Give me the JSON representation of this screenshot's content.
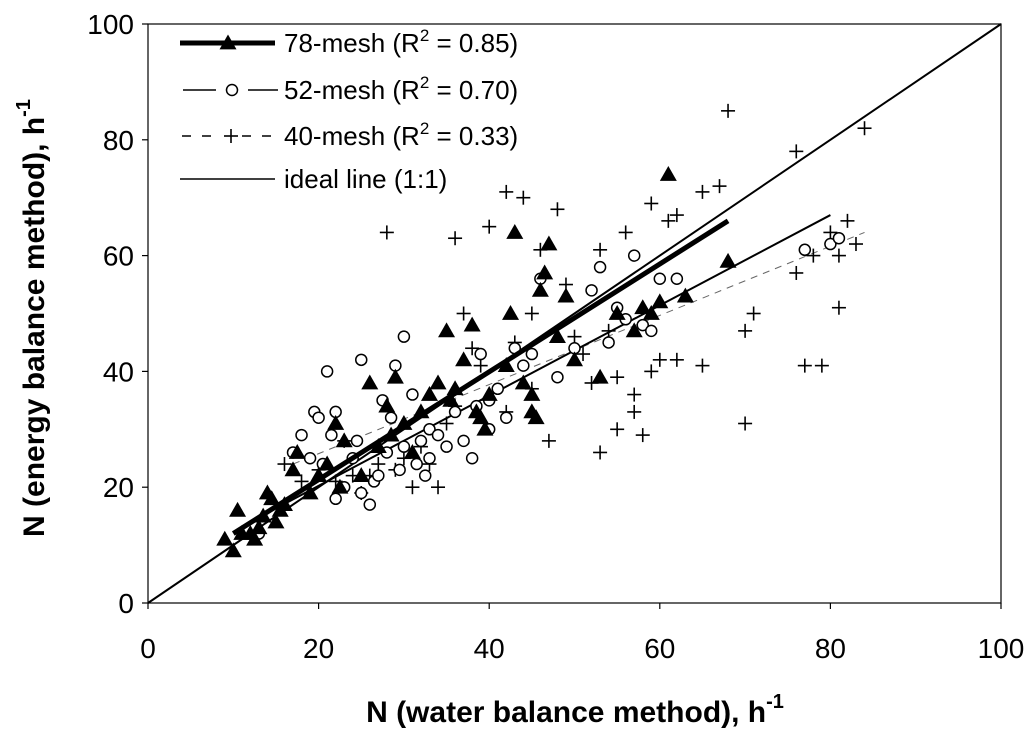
{
  "chart_data": {
    "type": "scatter",
    "xlabel": "N (water balance method), h",
    "xlabel_sup": "-1",
    "ylabel": "N (energy balance method), h",
    "ylabel_sup": "-1",
    "xlim": [
      0,
      100
    ],
    "ylim": [
      0,
      100
    ],
    "xticks": [
      "0",
      "20",
      "40",
      "60",
      "80",
      "100"
    ],
    "yticks": [
      "0",
      "20",
      "40",
      "60",
      "80",
      "100"
    ],
    "grid": false,
    "legend_position": "top-left",
    "series": [
      {
        "name": "78-mesh",
        "r2_label": "(R",
        "r2_sup": "2",
        "r2_value": " = 0.85)",
        "marker": "filled-triangle",
        "color": "#000000",
        "fit": {
          "x": [
            10,
            68
          ],
          "y": [
            12,
            66
          ]
        },
        "points": [
          [
            9,
            11
          ],
          [
            10,
            9
          ],
          [
            10.5,
            16
          ],
          [
            11,
            12
          ],
          [
            12,
            12
          ],
          [
            12.5,
            11
          ],
          [
            13,
            13
          ],
          [
            13.5,
            15
          ],
          [
            14,
            19
          ],
          [
            14.5,
            18
          ],
          [
            15,
            14
          ],
          [
            15.5,
            16
          ],
          [
            16,
            17
          ],
          [
            17,
            23
          ],
          [
            17.5,
            26
          ],
          [
            19,
            19
          ],
          [
            20,
            22
          ],
          [
            21,
            24
          ],
          [
            22,
            31
          ],
          [
            22.5,
            20
          ],
          [
            23,
            28
          ],
          [
            25,
            22
          ],
          [
            26,
            38
          ],
          [
            27,
            27
          ],
          [
            28,
            34
          ],
          [
            28.5,
            29
          ],
          [
            29,
            39
          ],
          [
            30,
            31
          ],
          [
            31,
            26
          ],
          [
            32,
            33
          ],
          [
            33,
            36
          ],
          [
            34,
            38
          ],
          [
            35,
            47
          ],
          [
            35.5,
            35
          ],
          [
            36,
            37
          ],
          [
            37,
            42
          ],
          [
            38,
            48
          ],
          [
            38.5,
            33
          ],
          [
            39,
            32
          ],
          [
            39.5,
            30
          ],
          [
            40,
            36
          ],
          [
            42,
            41
          ],
          [
            42.5,
            50
          ],
          [
            43,
            64
          ],
          [
            44,
            38
          ],
          [
            45,
            36
          ],
          [
            45.5,
            32
          ],
          [
            45,
            33
          ],
          [
            46,
            54
          ],
          [
            46.5,
            57
          ],
          [
            47,
            62
          ],
          [
            48,
            46
          ],
          [
            49,
            53
          ],
          [
            50,
            42
          ],
          [
            53,
            39
          ],
          [
            55,
            50
          ],
          [
            57,
            47
          ],
          [
            58,
            51
          ],
          [
            59,
            50
          ],
          [
            60,
            52
          ],
          [
            61,
            74
          ],
          [
            63,
            53
          ],
          [
            68,
            59
          ]
        ]
      },
      {
        "name": "52-mesh",
        "r2_label": "(R",
        "r2_sup": "2",
        "r2_value": " = 0.70)",
        "marker": "open-circle",
        "color": "#000000",
        "fit": {
          "x": [
            12,
            80
          ],
          "y": [
            14,
            67
          ]
        },
        "points": [
          [
            13,
            12
          ],
          [
            17,
            26
          ],
          [
            18,
            29
          ],
          [
            19,
            25
          ],
          [
            19.5,
            33
          ],
          [
            20,
            32
          ],
          [
            20.5,
            24
          ],
          [
            21,
            40
          ],
          [
            21.5,
            29
          ],
          [
            22,
            33
          ],
          [
            22,
            18
          ],
          [
            23,
            20
          ],
          [
            24,
            25
          ],
          [
            24.5,
            28
          ],
          [
            25,
            42
          ],
          [
            25,
            19
          ],
          [
            26,
            17
          ],
          [
            26.5,
            21
          ],
          [
            27,
            22
          ],
          [
            27.5,
            35
          ],
          [
            28,
            26
          ],
          [
            28.5,
            32
          ],
          [
            29,
            41
          ],
          [
            29.5,
            23
          ],
          [
            30,
            46
          ],
          [
            30,
            27
          ],
          [
            31,
            36
          ],
          [
            31.5,
            24
          ],
          [
            32,
            28
          ],
          [
            32.5,
            22
          ],
          [
            33,
            30
          ],
          [
            33,
            25
          ],
          [
            34,
            29
          ],
          [
            35,
            27
          ],
          [
            36,
            33
          ],
          [
            37,
            28
          ],
          [
            38,
            25
          ],
          [
            38.5,
            34
          ],
          [
            39,
            43
          ],
          [
            40,
            35
          ],
          [
            40,
            30
          ],
          [
            41,
            37
          ],
          [
            42,
            32
          ],
          [
            43,
            44
          ],
          [
            44,
            41
          ],
          [
            45,
            43
          ],
          [
            46,
            56
          ],
          [
            48,
            39
          ],
          [
            50,
            44
          ],
          [
            52,
            54
          ],
          [
            53,
            58
          ],
          [
            54,
            45
          ],
          [
            55,
            51
          ],
          [
            56,
            49
          ],
          [
            57,
            60
          ],
          [
            58,
            48
          ],
          [
            59,
            47
          ],
          [
            60,
            56
          ],
          [
            62,
            56
          ],
          [
            77,
            61
          ],
          [
            80,
            62
          ],
          [
            81,
            63
          ]
        ]
      },
      {
        "name": "40-mesh",
        "r2_label": "(R",
        "r2_sup": "2",
        "r2_value": " = 0.33)",
        "marker": "plus",
        "color": "#000000",
        "fit": {
          "x": [
            17,
            84
          ],
          "y": [
            24,
            64
          ]
        },
        "points": [
          [
            16,
            24
          ],
          [
            18,
            21
          ],
          [
            20,
            23
          ],
          [
            22,
            21
          ],
          [
            23,
            28
          ],
          [
            24,
            22
          ],
          [
            25,
            19
          ],
          [
            26,
            22
          ],
          [
            27,
            24
          ],
          [
            28,
            64
          ],
          [
            29,
            23
          ],
          [
            30,
            25
          ],
          [
            31,
            20
          ],
          [
            32,
            27
          ],
          [
            33,
            24
          ],
          [
            34,
            20
          ],
          [
            35,
            31
          ],
          [
            36,
            34
          ],
          [
            36,
            63
          ],
          [
            37,
            50
          ],
          [
            38,
            44
          ],
          [
            39,
            41
          ],
          [
            40,
            65
          ],
          [
            42,
            33
          ],
          [
            42,
            71
          ],
          [
            43,
            45
          ],
          [
            44,
            70
          ],
          [
            45,
            50
          ],
          [
            45,
            37
          ],
          [
            46,
            61
          ],
          [
            47,
            28
          ],
          [
            48,
            68
          ],
          [
            49,
            55
          ],
          [
            50,
            46
          ],
          [
            51,
            43
          ],
          [
            52,
            38
          ],
          [
            53,
            61
          ],
          [
            53,
            26
          ],
          [
            54,
            47
          ],
          [
            55,
            39
          ],
          [
            55,
            30
          ],
          [
            56,
            64
          ],
          [
            57,
            36
          ],
          [
            57,
            33
          ],
          [
            58,
            29
          ],
          [
            59,
            40
          ],
          [
            59,
            69
          ],
          [
            60,
            42
          ],
          [
            61,
            66
          ],
          [
            62,
            42
          ],
          [
            62,
            67
          ],
          [
            65,
            71
          ],
          [
            65,
            41
          ],
          [
            67,
            72
          ],
          [
            68,
            85
          ],
          [
            70,
            31
          ],
          [
            70,
            47
          ],
          [
            71,
            50
          ],
          [
            76,
            57
          ],
          [
            76,
            78
          ],
          [
            77,
            41
          ],
          [
            78,
            60
          ],
          [
            79,
            41
          ],
          [
            80,
            64
          ],
          [
            81,
            51
          ],
          [
            81,
            60
          ],
          [
            82,
            66
          ],
          [
            83,
            62
          ],
          [
            84,
            82
          ]
        ]
      },
      {
        "name": "ideal line (1:1)",
        "marker": "none",
        "color": "#000000",
        "line": {
          "x": [
            0,
            100
          ],
          "y": [
            0,
            100
          ]
        }
      }
    ]
  }
}
